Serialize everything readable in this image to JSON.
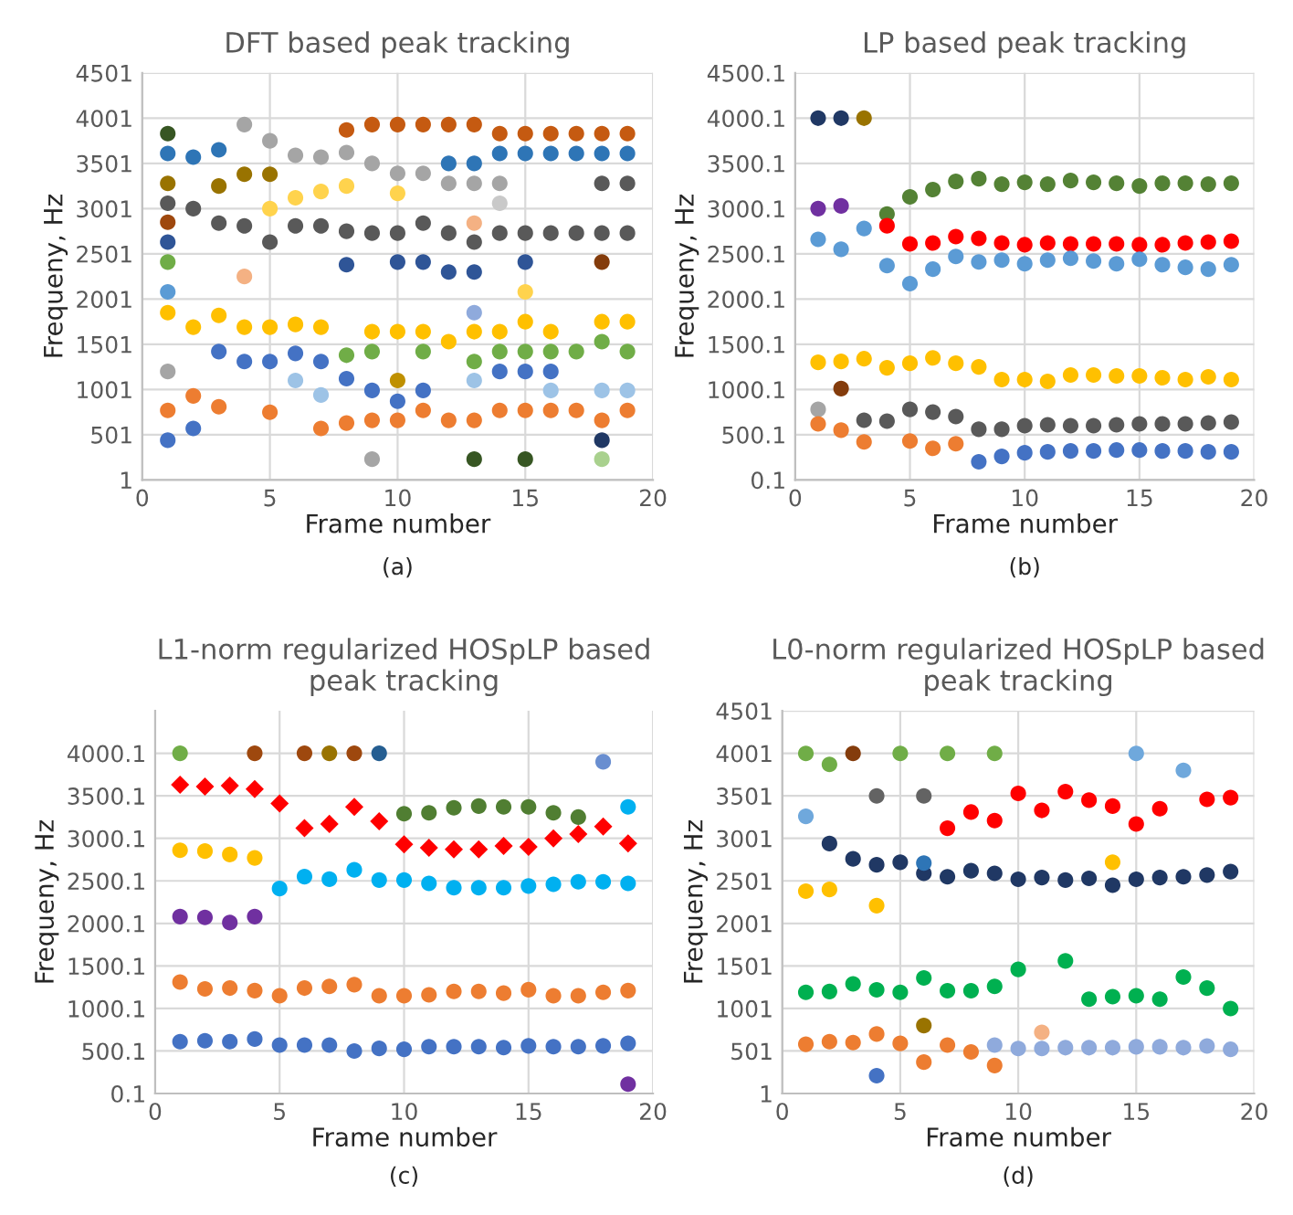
{
  "chart_data": [
    {
      "type": "scatter",
      "title": "DFT based peak tracking",
      "xlabel": "Frame number",
      "ylabel": "Frequeny, Hz",
      "annotations": [
        "(a)"
      ],
      "xlim": [
        0,
        20
      ],
      "xticks": [
        0,
        5,
        10,
        15,
        20
      ],
      "ylim": [
        1,
        4501
      ],
      "yticks": [
        1,
        501,
        1001,
        1501,
        2001,
        2501,
        3001,
        3501,
        4001,
        4501
      ],
      "grid": true,
      "marker": "circle",
      "series": [
        {
          "color": "#375623",
          "x": [
            1,
            13,
            15
          ],
          "values": [
            3830,
            230,
            230
          ]
        },
        {
          "color": "#4472c4",
          "x": [
            1,
            2,
            3,
            4,
            5,
            6,
            7,
            8,
            9,
            10,
            11,
            14,
            15,
            16
          ],
          "values": [
            440,
            570,
            1420,
            1310,
            1310,
            1400,
            1310,
            1120,
            990,
            870,
            990,
            1200,
            1200,
            1200
          ]
        },
        {
          "color": "#2e75b6",
          "x": [
            1,
            2,
            3,
            12,
            13,
            14,
            15,
            16,
            17,
            18,
            19
          ],
          "values": [
            3610,
            3570,
            3650,
            3500,
            3500,
            3610,
            3610,
            3610,
            3610,
            3610,
            3610
          ]
        },
        {
          "color": "#2f5597",
          "x": [
            1,
            8,
            10,
            11,
            12,
            13,
            15
          ],
          "values": [
            2630,
            2380,
            2410,
            2410,
            2300,
            2300,
            2410
          ]
        },
        {
          "color": "#203864",
          "x": [
            18
          ],
          "values": [
            440
          ]
        },
        {
          "color": "#997300",
          "x": [
            1,
            3,
            4,
            5
          ],
          "values": [
            3280,
            3250,
            3380,
            3380
          ]
        },
        {
          "color": "#bf9000",
          "x": [
            10
          ],
          "values": [
            1100
          ]
        },
        {
          "color": "#595959",
          "x": [
            1,
            2,
            3,
            4,
            5,
            6,
            7,
            8,
            9,
            10,
            11,
            12,
            13,
            14,
            15,
            16,
            17,
            18,
            19,
            18,
            19
          ],
          "values": [
            3060,
            3000,
            2840,
            2810,
            2630,
            2810,
            2810,
            2750,
            2730,
            2730,
            2840,
            2730,
            2630,
            2730,
            2730,
            2730,
            2730,
            2730,
            2730,
            3280,
            3280
          ]
        },
        {
          "color": "#9e480e",
          "x": [
            1
          ],
          "values": [
            2850
          ]
        },
        {
          "color": "#843c0c",
          "x": [
            18
          ],
          "values": [
            2410
          ]
        },
        {
          "color": "#70ad47",
          "x": [
            1,
            8,
            9,
            11,
            13,
            14,
            15,
            16,
            17,
            18,
            19
          ],
          "values": [
            2410,
            1380,
            1420,
            1420,
            1310,
            1420,
            1420,
            1420,
            1420,
            1530,
            1420
          ]
        },
        {
          "color": "#5b9bd5",
          "x": [
            1
          ],
          "values": [
            2080
          ]
        },
        {
          "color": "#a5a5a5",
          "x": [
            1,
            4,
            5,
            6,
            7,
            8,
            9,
            10,
            11,
            12,
            13,
            14,
            9
          ],
          "values": [
            1200,
            3930,
            3750,
            3590,
            3570,
            3620,
            3500,
            3390,
            3390,
            3280,
            3280,
            3280,
            230
          ]
        },
        {
          "color": "#c9c9c9",
          "x": [
            14
          ],
          "values": [
            3060
          ]
        },
        {
          "color": "#ffc000",
          "x": [
            1,
            2,
            3,
            4,
            5,
            6,
            7,
            9,
            10,
            11,
            12,
            13,
            14,
            15,
            16,
            18,
            19
          ],
          "values": [
            1850,
            1690,
            1820,
            1690,
            1690,
            1720,
            1690,
            1640,
            1640,
            1640,
            1530,
            1640,
            1640,
            1750,
            1640,
            1750,
            1750
          ]
        },
        {
          "color": "#ffd34d",
          "x": [
            5,
            6,
            7,
            8,
            10,
            15
          ],
          "values": [
            3000,
            3120,
            3190,
            3250,
            3170,
            2080
          ]
        },
        {
          "color": "#ed7d31",
          "x": [
            1,
            2,
            3,
            5,
            7,
            8,
            9,
            10,
            11,
            12,
            13,
            14,
            15,
            16,
            17,
            18,
            19
          ],
          "values": [
            770,
            930,
            810,
            750,
            570,
            630,
            660,
            660,
            770,
            660,
            660,
            770,
            770,
            770,
            770,
            660,
            770
          ]
        },
        {
          "color": "#c55a11",
          "x": [
            8,
            9,
            10,
            11,
            12,
            13,
            14,
            15,
            16,
            17,
            18,
            19
          ],
          "values": [
            3870,
            3930,
            3930,
            3930,
            3930,
            3930,
            3830,
            3830,
            3830,
            3830,
            3830,
            3830
          ]
        },
        {
          "color": "#f4b183",
          "x": [
            4,
            13
          ],
          "values": [
            2250,
            2840
          ]
        },
        {
          "color": "#8faadc",
          "x": [
            13
          ],
          "values": [
            1850
          ]
        },
        {
          "color": "#9dc3e6",
          "x": [
            6,
            7,
            16,
            18,
            19,
            13
          ],
          "values": [
            1100,
            940,
            990,
            990,
            990,
            1100
          ]
        },
        {
          "color": "#a9d18e",
          "x": [
            18
          ],
          "values": [
            230
          ]
        }
      ]
    },
    {
      "type": "scatter",
      "title": "LP based peak tracking",
      "xlabel": "Frame number",
      "ylabel": "Frequeny, Hz",
      "annotations": [
        "(b)"
      ],
      "xlim": [
        0,
        20
      ],
      "xticks": [
        0,
        5,
        10,
        15,
        20
      ],
      "ylim": [
        0.1,
        4500.1
      ],
      "yticks": [
        {
          "value": 0.1,
          "label": "0.1"
        },
        {
          "value": 500.1,
          "label": "500.1"
        },
        {
          "value": 1000.1,
          "label": "1000.1"
        },
        {
          "value": 1500.1,
          "label": "1500.1"
        },
        {
          "value": 2000.1,
          "label": "2000.1"
        },
        {
          "value": 2500.1,
          "label": "2500.1"
        },
        {
          "value": 3000.1,
          "label": "3000.1"
        },
        {
          "value": 3500.1,
          "label": "3500.1"
        },
        {
          "value": 4000.1,
          "label": "4000.1"
        },
        {
          "value": 4500.1,
          "label": "4500.1"
        }
      ],
      "grid": true,
      "marker": "circle",
      "series": [
        {
          "color": "#203864",
          "x": [
            1,
            2
          ],
          "values": [
            4000,
            4000
          ]
        },
        {
          "color": "#997300",
          "x": [
            3
          ],
          "values": [
            4000
          ]
        },
        {
          "color": "#7030a0",
          "x": [
            1,
            2
          ],
          "values": [
            3000,
            3030
          ]
        },
        {
          "color": "#548235",
          "x": [
            4,
            5,
            6,
            7,
            8,
            9,
            10,
            11,
            12,
            13,
            14,
            15,
            16,
            17,
            18,
            19
          ],
          "values": [
            2940,
            3130,
            3210,
            3300,
            3330,
            3270,
            3290,
            3270,
            3310,
            3290,
            3280,
            3250,
            3280,
            3280,
            3270,
            3280
          ]
        },
        {
          "color": "#ff0000",
          "x": [
            4,
            5,
            6,
            7,
            8,
            9,
            10,
            11,
            12,
            13,
            14,
            15,
            16,
            17,
            18,
            19
          ],
          "values": [
            2810,
            2610,
            2620,
            2690,
            2670,
            2620,
            2600,
            2620,
            2610,
            2610,
            2610,
            2600,
            2600,
            2620,
            2630,
            2640
          ]
        },
        {
          "color": "#5b9bd5",
          "x": [
            1,
            2,
            3,
            4,
            5,
            6,
            7,
            8,
            9,
            10,
            11,
            12,
            13,
            14,
            15,
            16,
            17,
            18,
            19
          ],
          "values": [
            2660,
            2550,
            2780,
            2370,
            2170,
            2330,
            2470,
            2410,
            2430,
            2390,
            2430,
            2450,
            2420,
            2390,
            2440,
            2380,
            2350,
            2330,
            2380
          ]
        },
        {
          "color": "#ffc000",
          "x": [
            1,
            2,
            3,
            4,
            5,
            6,
            7,
            8,
            9,
            10,
            11,
            12,
            13,
            14,
            15,
            16,
            17,
            18,
            19
          ],
          "values": [
            1300,
            1310,
            1340,
            1240,
            1290,
            1350,
            1290,
            1250,
            1110,
            1110,
            1090,
            1160,
            1160,
            1150,
            1150,
            1130,
            1110,
            1140,
            1110
          ]
        },
        {
          "color": "#843c0c",
          "x": [
            2
          ],
          "values": [
            1010
          ]
        },
        {
          "color": "#a5a5a5",
          "x": [
            1
          ],
          "values": [
            780
          ]
        },
        {
          "color": "#595959",
          "x": [
            3,
            4,
            5,
            6,
            7,
            8,
            9,
            10,
            11,
            12,
            13,
            14,
            15,
            16,
            17,
            18,
            19
          ],
          "values": [
            660,
            650,
            780,
            750,
            700,
            560,
            560,
            600,
            610,
            600,
            600,
            610,
            620,
            620,
            620,
            630,
            640
          ]
        },
        {
          "color": "#ed7d31",
          "x": [
            1,
            2,
            3,
            5,
            6,
            7
          ],
          "values": [
            620,
            550,
            420,
            430,
            350,
            400
          ]
        },
        {
          "color": "#4472c4",
          "x": [
            8,
            9,
            10,
            11,
            12,
            13,
            14,
            15,
            16,
            17,
            18,
            19
          ],
          "values": [
            200,
            260,
            300,
            310,
            320,
            320,
            330,
            330,
            320,
            320,
            310,
            310
          ]
        }
      ]
    },
    {
      "type": "scatter",
      "title": "L1-norm regularized HOSpLP based peak tracking",
      "xlabel": "Frame number",
      "ylabel": "Frequeny, Hz",
      "annotations": [
        "(c)"
      ],
      "xlim": [
        0,
        20
      ],
      "xticks": [
        0,
        5,
        10,
        15,
        20
      ],
      "ylim": [
        0.1,
        4500.1
      ],
      "yticks": [
        {
          "value": 0.1,
          "label": "0.1"
        },
        {
          "value": 500.1,
          "label": "500.1"
        },
        {
          "value": 1000.1,
          "label": "1000.1"
        },
        {
          "value": 1500.1,
          "label": "1500.1"
        },
        {
          "value": 2000.1,
          "label": "2000.1"
        },
        {
          "value": 2500.1,
          "label": "2500.1"
        },
        {
          "value": 3000.1,
          "label": "3000.1"
        },
        {
          "value": 3500.1,
          "label": "3500.1"
        },
        {
          "value": 4000.1,
          "label": "4000.1"
        }
      ],
      "grid": true,
      "marker": "circle",
      "series": [
        {
          "color": "#70ad47",
          "x": [
            1
          ],
          "values": [
            4000
          ]
        },
        {
          "color": "#9e480e",
          "x": [
            4,
            6,
            8
          ],
          "values": [
            4000,
            4000,
            4000
          ]
        },
        {
          "color": "#997300",
          "x": [
            7
          ],
          "values": [
            4000
          ]
        },
        {
          "color": "#255e91",
          "x": [
            9
          ],
          "values": [
            4000
          ]
        },
        {
          "color": "#698ed0",
          "x": [
            18
          ],
          "values": [
            3900
          ]
        },
        {
          "color": "#ff0000",
          "marker": "diamond",
          "x": [
            1,
            2,
            3,
            4,
            5,
            6,
            7,
            8,
            9,
            10,
            11,
            12,
            13,
            14,
            15,
            16,
            17,
            18,
            19
          ],
          "values": [
            3630,
            3610,
            3620,
            3580,
            3410,
            3120,
            3170,
            3370,
            3200,
            2930,
            2890,
            2870,
            2870,
            2910,
            2900,
            3000,
            3050,
            3140,
            2940
          ]
        },
        {
          "color": "#507e32",
          "x": [
            10,
            11,
            12,
            13,
            14,
            15,
            16,
            17
          ],
          "values": [
            3290,
            3300,
            3360,
            3380,
            3370,
            3370,
            3300,
            3250
          ]
        },
        {
          "color": "#00b0f0",
          "x": [
            5,
            6,
            7,
            8,
            9,
            10,
            11,
            12,
            13,
            14,
            15,
            16,
            17,
            18,
            19,
            19
          ],
          "values": [
            2410,
            2550,
            2520,
            2630,
            2510,
            2510,
            2470,
            2420,
            2420,
            2420,
            2440,
            2460,
            2490,
            2490,
            2470,
            3370
          ]
        },
        {
          "color": "#ffc000",
          "x": [
            1,
            2,
            3,
            4
          ],
          "values": [
            2860,
            2850,
            2810,
            2770
          ]
        },
        {
          "color": "#7030a0",
          "x": [
            1,
            2,
            3,
            4,
            19
          ],
          "values": [
            2080,
            2070,
            2010,
            2080,
            110
          ]
        },
        {
          "color": "#ed7d31",
          "x": [
            1,
            2,
            3,
            4,
            5,
            6,
            7,
            8,
            9,
            10,
            11,
            12,
            13,
            14,
            15,
            16,
            17,
            18,
            19
          ],
          "values": [
            1310,
            1230,
            1240,
            1210,
            1150,
            1240,
            1260,
            1280,
            1150,
            1150,
            1160,
            1200,
            1200,
            1180,
            1220,
            1150,
            1150,
            1190,
            1210
          ]
        },
        {
          "color": "#4472c4",
          "x": [
            1,
            2,
            3,
            4,
            5,
            6,
            7,
            8,
            9,
            10,
            11,
            12,
            13,
            14,
            15,
            16,
            17,
            18,
            19
          ],
          "values": [
            610,
            620,
            610,
            640,
            570,
            570,
            570,
            500,
            530,
            520,
            550,
            550,
            550,
            540,
            560,
            550,
            550,
            560,
            590
          ]
        }
      ]
    },
    {
      "type": "scatter",
      "title": "L0-norm regularized HOSpLP based peak tracking",
      "xlabel": "Frame number",
      "ylabel": "Frequeny, Hz",
      "annotations": [
        "(d)"
      ],
      "xlim": [
        0,
        20
      ],
      "xticks": [
        0,
        5,
        10,
        15,
        20
      ],
      "ylim": [
        1,
        4501
      ],
      "yticks": [
        1,
        501,
        1001,
        1501,
        2001,
        2501,
        3001,
        3501,
        4001,
        4501
      ],
      "grid": true,
      "marker": "circle",
      "series": [
        {
          "color": "#70ad47",
          "x": [
            1,
            2,
            5,
            7,
            9
          ],
          "values": [
            4000,
            3870,
            4000,
            4000,
            4000
          ]
        },
        {
          "color": "#843c0c",
          "x": [
            3
          ],
          "values": [
            4000
          ]
        },
        {
          "color": "#636363",
          "x": [
            4,
            6
          ],
          "values": [
            3500,
            3500
          ]
        },
        {
          "color": "#6fa8dc",
          "x": [
            1,
            15,
            17
          ],
          "values": [
            3260,
            4000,
            3800
          ]
        },
        {
          "color": "#ff0000",
          "x": [
            7,
            8,
            9,
            10,
            11,
            12,
            13,
            14,
            15,
            16,
            18,
            19
          ],
          "values": [
            3120,
            3310,
            3210,
            3530,
            3330,
            3550,
            3450,
            3380,
            3170,
            3350,
            3460,
            3480
          ]
        },
        {
          "color": "#203864",
          "x": [
            2,
            3,
            4,
            5,
            6,
            7,
            8,
            9,
            10,
            11,
            12,
            13,
            14,
            15,
            16,
            17,
            18,
            19
          ],
          "values": [
            2940,
            2760,
            2690,
            2720,
            2590,
            2550,
            2620,
            2590,
            2520,
            2540,
            2510,
            2530,
            2450,
            2520,
            2540,
            2550,
            2570,
            2610
          ]
        },
        {
          "color": "#2e75b6",
          "x": [
            6
          ],
          "values": [
            2710
          ]
        },
        {
          "color": "#ffc000",
          "x": [
            1,
            2,
            4,
            14
          ],
          "values": [
            2380,
            2400,
            2210,
            2720
          ]
        },
        {
          "color": "#00b050",
          "x": [
            1,
            2,
            3,
            4,
            5,
            6,
            7,
            8,
            9,
            10,
            12,
            13,
            14,
            15,
            16,
            17,
            18,
            19
          ],
          "values": [
            1190,
            1200,
            1290,
            1220,
            1190,
            1360,
            1210,
            1210,
            1260,
            1460,
            1560,
            1110,
            1140,
            1150,
            1110,
            1370,
            1240,
            1000
          ]
        },
        {
          "color": "#ed7d31",
          "x": [
            1,
            2,
            3,
            4,
            5,
            6,
            7,
            8,
            9
          ],
          "values": [
            580,
            610,
            600,
            700,
            590,
            370,
            570,
            490,
            330
          ]
        },
        {
          "color": "#f4b183",
          "x": [
            11
          ],
          "values": [
            720
          ]
        },
        {
          "color": "#997300",
          "x": [
            6
          ],
          "values": [
            800
          ]
        },
        {
          "color": "#4472c4",
          "x": [
            4
          ],
          "values": [
            210
          ]
        },
        {
          "color": "#8faadc",
          "x": [
            9,
            10,
            11,
            12,
            13,
            14,
            15,
            16,
            17,
            18,
            19
          ],
          "values": [
            570,
            530,
            530,
            540,
            540,
            540,
            550,
            550,
            540,
            560,
            520
          ]
        }
      ]
    }
  ]
}
